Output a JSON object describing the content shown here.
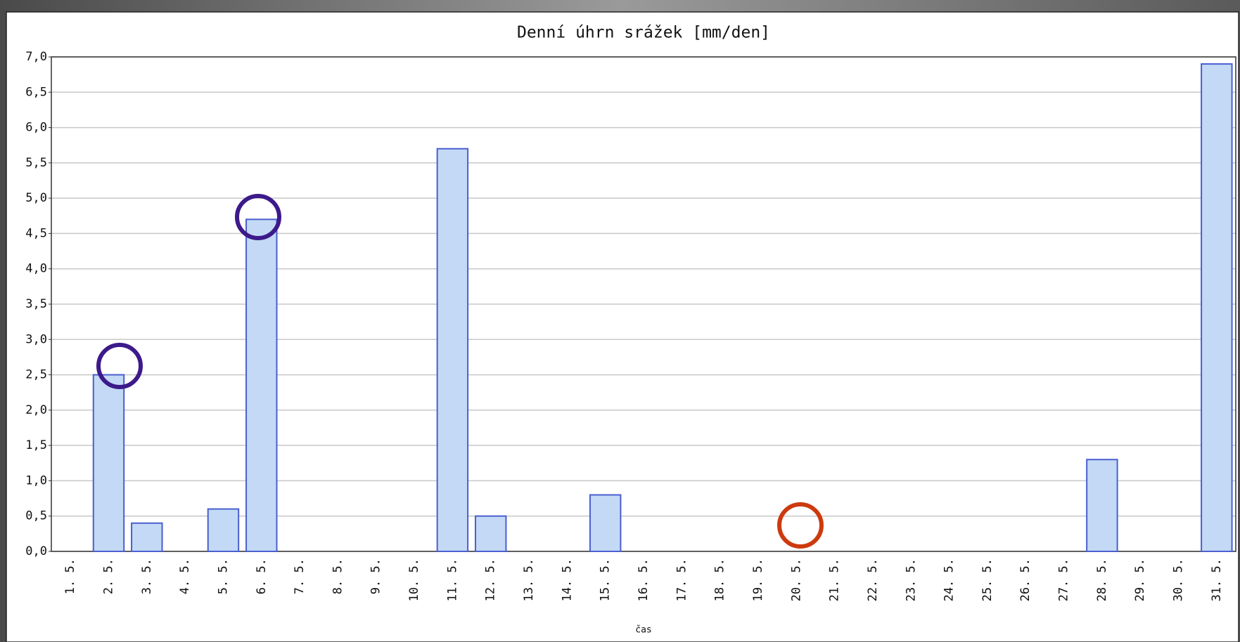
{
  "chart_data": {
    "type": "bar",
    "title": "Denní úhrn srážek [mm/den]",
    "x_label": "čas",
    "categories": [
      "1. 5.",
      "2. 5.",
      "3. 5.",
      "4. 5.",
      "5. 5.",
      "6. 5.",
      "7. 5.",
      "8. 5.",
      "9. 5.",
      "10. 5.",
      "11. 5.",
      "12. 5.",
      "13. 5.",
      "14. 5.",
      "15. 5.",
      "16. 5.",
      "17. 5.",
      "18. 5.",
      "19. 5.",
      "20. 5.",
      "21. 5.",
      "22. 5.",
      "23. 5.",
      "24. 5.",
      "25. 5.",
      "26. 5.",
      "27. 5.",
      "28. 5.",
      "29. 5.",
      "30. 5.",
      "31. 5."
    ],
    "values": [
      0,
      2.5,
      0.4,
      0,
      0.6,
      4.7,
      0,
      0,
      0,
      0,
      5.7,
      0.5,
      0,
      0,
      0.8,
      0,
      0,
      0,
      0,
      0,
      0,
      0,
      0,
      0,
      0,
      0,
      0,
      1.3,
      0,
      0,
      6.9
    ],
    "color": "#c3d9f5",
    "edge_color": "#4a5fcf",
    "ylim": [
      0,
      7
    ],
    "yticks": [
      {
        "value": 0,
        "label": "0,0"
      },
      {
        "value": 0.5,
        "label": "0,5"
      },
      {
        "value": 1,
        "label": "1,0"
      },
      {
        "value": 1.5,
        "label": "1,5"
      },
      {
        "value": 2,
        "label": "2,0"
      },
      {
        "value": 2.5,
        "label": "2,5"
      },
      {
        "value": 3,
        "label": "3,0"
      },
      {
        "value": 3.5,
        "label": "3,5"
      },
      {
        "value": 4,
        "label": "4,0"
      },
      {
        "value": 4.5,
        "label": "4,5"
      },
      {
        "value": 5,
        "label": "5,0"
      },
      {
        "value": 5.5,
        "label": "5,5"
      },
      {
        "value": 6,
        "label": "6,0"
      },
      {
        "value": 6.5,
        "label": "6,5"
      },
      {
        "value": 7,
        "label": "7,0"
      }
    ],
    "grid": true
  }
}
